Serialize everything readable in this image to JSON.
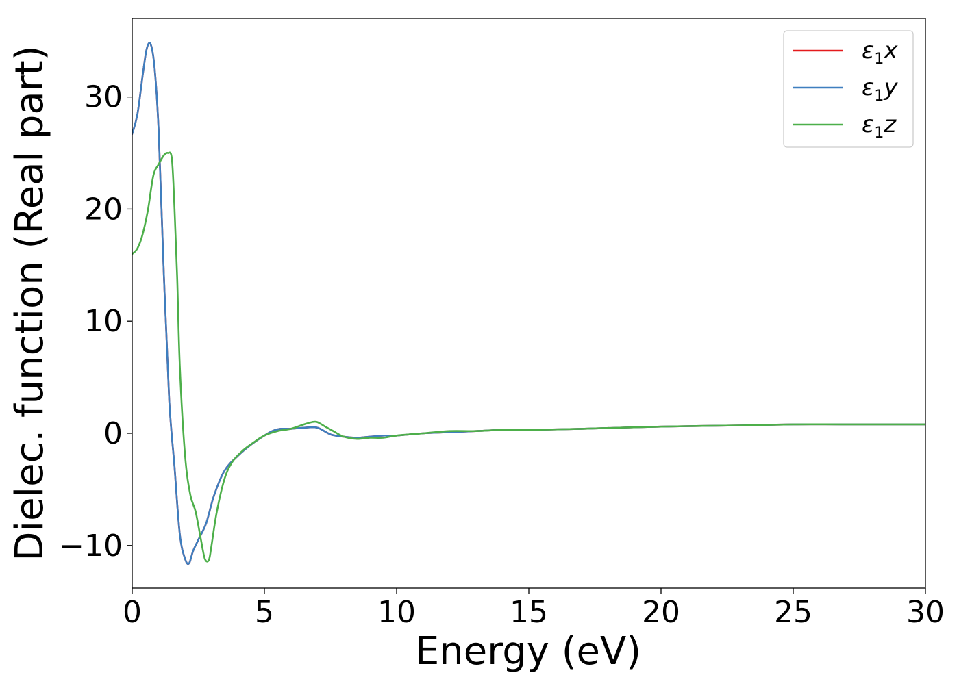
{
  "chart_data": {
    "type": "line",
    "xlabel": "Energy (eV)",
    "ylabel": "Dielec. function (Real part)",
    "xlim": [
      0,
      30
    ],
    "ylim": [
      -13.8,
      37
    ],
    "xticks": [
      0,
      5,
      10,
      15,
      20,
      25,
      30
    ],
    "xtick_labels": [
      "0",
      "5",
      "10",
      "15",
      "20",
      "25",
      "30"
    ],
    "yticks": [
      -10,
      0,
      10,
      20,
      30
    ],
    "ytick_labels": [
      "−10",
      "0",
      "10",
      "20",
      "30"
    ],
    "grid": false,
    "legend_position": "top-right",
    "series": [
      {
        "name": "ε1x",
        "legend_main": "ε",
        "legend_sub": "1",
        "legend_axis": "x",
        "color": "#e41a1c",
        "x": [
          0,
          0.2,
          0.4,
          0.55,
          0.7,
          0.85,
          1.0,
          1.2,
          1.4,
          1.6,
          1.8,
          2.0,
          2.15,
          2.3,
          2.5,
          2.8,
          3.1,
          3.5,
          4.0,
          4.5,
          5.0,
          5.3,
          5.6,
          6.0,
          6.5,
          7.0,
          7.5,
          8.0,
          8.5,
          9.0,
          9.5,
          10.0,
          11.0,
          12.0,
          13.0,
          14.0,
          15.0,
          17.0,
          20.0,
          23.0,
          25.0,
          27.0,
          30.0
        ],
        "y": [
          26.7,
          28.5,
          32.0,
          34.3,
          34.7,
          32.5,
          27.0,
          14.0,
          3.0,
          -3.0,
          -9.0,
          -11.2,
          -11.6,
          -10.5,
          -9.5,
          -8.0,
          -5.5,
          -3.3,
          -2.0,
          -1.0,
          -0.2,
          0.2,
          0.4,
          0.4,
          0.5,
          0.5,
          -0.1,
          -0.3,
          -0.4,
          -0.3,
          -0.2,
          -0.2,
          0.0,
          0.1,
          0.2,
          0.3,
          0.3,
          0.4,
          0.6,
          0.7,
          0.8,
          0.8,
          0.8
        ]
      },
      {
        "name": "ε1y",
        "legend_main": "ε",
        "legend_sub": "1",
        "legend_axis": "y",
        "color": "#3f7fbf",
        "x": [
          0,
          0.2,
          0.4,
          0.55,
          0.7,
          0.85,
          1.0,
          1.2,
          1.4,
          1.6,
          1.8,
          2.0,
          2.15,
          2.3,
          2.5,
          2.8,
          3.1,
          3.5,
          4.0,
          4.5,
          5.0,
          5.3,
          5.6,
          6.0,
          6.5,
          7.0,
          7.5,
          8.0,
          8.5,
          9.0,
          9.5,
          10.0,
          11.0,
          12.0,
          13.0,
          14.0,
          15.0,
          17.0,
          20.0,
          23.0,
          25.0,
          27.0,
          30.0
        ],
        "y": [
          26.7,
          28.5,
          32.0,
          34.3,
          34.7,
          32.5,
          27.0,
          14.0,
          3.0,
          -3.0,
          -9.0,
          -11.2,
          -11.6,
          -10.5,
          -9.5,
          -8.0,
          -5.5,
          -3.3,
          -2.0,
          -1.0,
          -0.2,
          0.2,
          0.4,
          0.4,
          0.5,
          0.5,
          -0.1,
          -0.3,
          -0.4,
          -0.3,
          -0.2,
          -0.2,
          0.0,
          0.1,
          0.2,
          0.3,
          0.3,
          0.4,
          0.6,
          0.7,
          0.8,
          0.8,
          0.8
        ]
      },
      {
        "name": "ε1z",
        "legend_main": "ε",
        "legend_sub": "1",
        "legend_axis": "z",
        "color": "#4daf4a",
        "x": [
          0,
          0.2,
          0.4,
          0.6,
          0.8,
          1.0,
          1.2,
          1.35,
          1.5,
          1.6,
          1.7,
          1.8,
          2.0,
          2.2,
          2.4,
          2.6,
          2.75,
          2.9,
          3.0,
          3.2,
          3.5,
          3.8,
          4.2,
          4.6,
          5.0,
          5.5,
          6.0,
          6.5,
          6.8,
          7.0,
          7.3,
          7.6,
          8.0,
          8.5,
          9.0,
          9.5,
          10.0,
          11.0,
          12.0,
          13.0,
          14.0,
          15.0,
          17.0,
          20.0,
          23.0,
          25.0,
          27.0,
          30.0
        ],
        "y": [
          16.0,
          16.5,
          17.8,
          20.0,
          23.0,
          24.0,
          24.8,
          25.0,
          24.5,
          20.0,
          14.0,
          6.0,
          -2.0,
          -5.5,
          -7.0,
          -9.5,
          -11.2,
          -11.3,
          -10.0,
          -7.0,
          -4.0,
          -2.5,
          -1.5,
          -0.8,
          -0.2,
          0.2,
          0.4,
          0.8,
          1.0,
          1.0,
          0.6,
          0.2,
          -0.3,
          -0.5,
          -0.4,
          -0.4,
          -0.2,
          0.0,
          0.2,
          0.2,
          0.3,
          0.3,
          0.4,
          0.6,
          0.7,
          0.8,
          0.8,
          0.8
        ]
      }
    ]
  }
}
